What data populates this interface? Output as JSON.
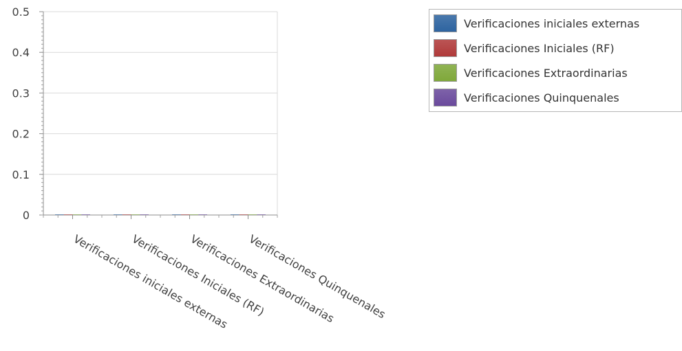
{
  "chart_data": {
    "type": "bar",
    "categories": [
      "Verificaciones iniciales externas",
      "Verificaciones Iniciales (RF)",
      "Verificaciones Extraordinarias",
      "Verificaciones Quinquenales"
    ],
    "series": [
      {
        "name": "Verificaciones iniciales externas",
        "values": [
          0,
          0,
          0,
          0
        ],
        "color": "#2e64a0"
      },
      {
        "name": "Verificaciones Iniciales (RF)",
        "values": [
          0,
          0,
          0,
          0
        ],
        "color": "#b03a3a"
      },
      {
        "name": "Verificaciones Extraordinarias",
        "values": [
          0,
          0,
          0,
          0
        ],
        "color": "#7fa83a"
      },
      {
        "name": "Verificaciones Quinquenales",
        "values": [
          0,
          0,
          0,
          0
        ],
        "color": "#6a4a9c"
      }
    ],
    "y_ticks": [
      "0",
      "0.1",
      "0.2",
      "0.3",
      "0.4",
      "0.5"
    ],
    "ylim": [
      0,
      0.5
    ],
    "grid": true,
    "legend_position": "top-right"
  }
}
